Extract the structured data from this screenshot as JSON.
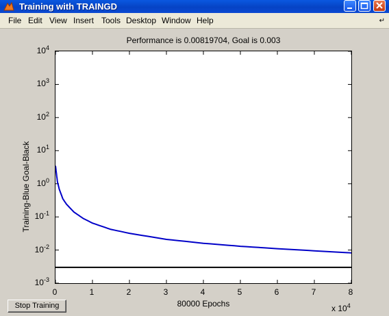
{
  "window": {
    "title": "Training with TRAINGD",
    "controls": [
      "minimize",
      "maximize",
      "close"
    ]
  },
  "menubar": {
    "items": [
      "File",
      "Edit",
      "View",
      "Insert",
      "Tools",
      "Desktop",
      "Window",
      "Help"
    ]
  },
  "plot": {
    "title": "Performance is 0.00819704, Goal is 0.003",
    "ylabel": "Training-Blue  Goal-Black",
    "xlabel": "80000 Epochs",
    "x_multiplier": "x 10",
    "x_multiplier_exp": "4"
  },
  "stop_button": {
    "label": "Stop Training"
  },
  "chart_data": {
    "type": "line",
    "title": "Performance is 0.00819704, Goal is 0.003",
    "xlabel": "80000 Epochs",
    "ylabel": "Training-Blue  Goal-Black",
    "xlim": [
      0,
      8
    ],
    "x_scale_note": "x 10^4",
    "ylim": [
      0.001,
      10000
    ],
    "y_scale": "log",
    "x_ticks": [
      "0",
      "1",
      "2",
      "3",
      "4",
      "5",
      "6",
      "7",
      "8"
    ],
    "y_ticks": [
      {
        "base": "10",
        "exp": "4"
      },
      {
        "base": "10",
        "exp": "3"
      },
      {
        "base": "10",
        "exp": "2"
      },
      {
        "base": "10",
        "exp": "1"
      },
      {
        "base": "10",
        "exp": "0"
      },
      {
        "base": "10",
        "exp": "-1"
      },
      {
        "base": "10",
        "exp": "-2"
      },
      {
        "base": "10",
        "exp": "-3"
      }
    ],
    "series": [
      {
        "color": "#0000c8",
        "x": [
          0,
          0.05,
          0.1,
          0.2,
          0.3,
          0.5,
          0.75,
          1,
          1.5,
          2,
          3,
          4,
          5,
          6,
          7,
          8
        ],
        "y": [
          3.5,
          1.2,
          0.7,
          0.35,
          0.24,
          0.14,
          0.09,
          0.065,
          0.042,
          0.032,
          0.021,
          0.016,
          0.013,
          0.011,
          0.0095,
          0.0082
        ]
      },
      {
        "color": "#000000",
        "x": [
          0,
          8
        ],
        "y": [
          0.003,
          0.003
        ]
      }
    ]
  }
}
